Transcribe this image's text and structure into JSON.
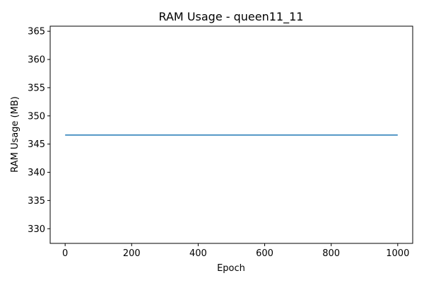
{
  "chart_data": {
    "type": "line",
    "title": "RAM Usage - queen11_11",
    "xlabel": "Epoch",
    "ylabel": "RAM Usage (MB)",
    "xlim": [
      -45,
      1045
    ],
    "ylim": [
      327.4,
      365.9
    ],
    "xticks": [
      0,
      200,
      400,
      600,
      800,
      1000
    ],
    "xtick_labels": [
      "0",
      "200",
      "400",
      "600",
      "800",
      "1000"
    ],
    "yticks": [
      330,
      335,
      340,
      345,
      350,
      355,
      360,
      365
    ],
    "ytick_labels": [
      "330",
      "335",
      "340",
      "345",
      "350",
      "355",
      "360",
      "365"
    ],
    "grid": false,
    "series": [
      {
        "name": "RAM Usage",
        "color": "#1f77b4",
        "x": [
          0,
          1000
        ],
        "y": [
          346.6,
          346.6
        ]
      }
    ]
  }
}
